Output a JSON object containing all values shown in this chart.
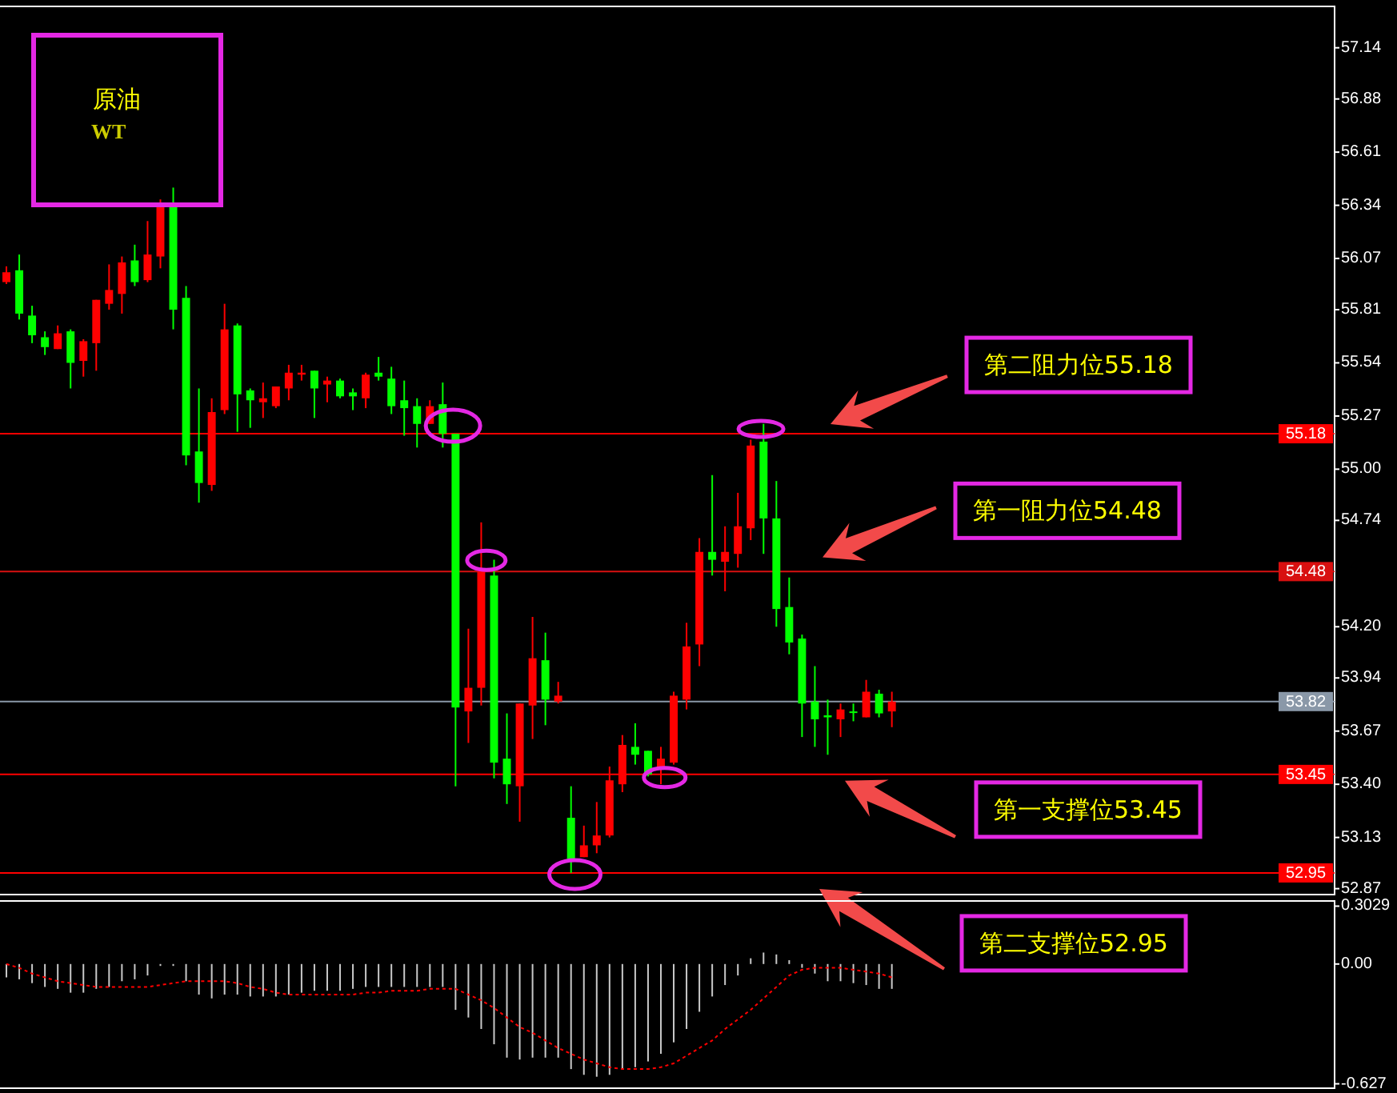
{
  "chart_data": [
    {
      "type": "candlestick",
      "title": "原油",
      "subtitle": "WT",
      "categories": [
        null,
        null,
        null,
        null,
        null,
        null,
        null,
        null,
        null,
        null,
        null,
        null,
        null,
        null,
        null,
        null,
        null,
        null,
        null,
        null,
        null,
        null,
        null,
        null,
        null,
        null,
        null,
        null,
        null,
        null,
        null,
        null,
        null,
        null,
        null,
        null,
        null,
        null,
        null,
        null,
        null,
        null,
        null,
        null,
        null,
        null,
        null,
        null,
        null,
        null,
        null,
        null,
        null,
        null,
        null,
        null,
        null,
        null,
        null,
        null,
        null,
        null,
        null,
        null,
        null,
        null,
        null,
        null,
        null,
        null,
        null,
        null,
        null,
        null,
        null,
        null,
        null,
        null,
        null,
        null,
        null,
        null,
        null,
        null,
        null,
        null,
        null,
        null,
        null,
        null,
        null,
        null,
        null,
        null,
        null,
        null,
        null,
        null,
        null,
        null,
        null,
        null,
        null,
        null
      ],
      "ohlc": [
        [
          55.95,
          56.03,
          55.94,
          56.0
        ],
        [
          56.01,
          56.09,
          55.76,
          55.79
        ],
        [
          55.78,
          55.83,
          55.64,
          55.68
        ],
        [
          55.67,
          55.7,
          55.58,
          55.62
        ],
        [
          55.61,
          55.73,
          55.61,
          55.69
        ],
        [
          55.7,
          55.71,
          55.41,
          55.54
        ],
        [
          55.55,
          55.66,
          55.47,
          55.65
        ],
        [
          55.64,
          55.86,
          55.5,
          55.86
        ],
        [
          55.84,
          56.04,
          55.81,
          55.91
        ],
        [
          55.89,
          56.08,
          55.79,
          56.05
        ],
        [
          56.06,
          56.14,
          55.93,
          55.95
        ],
        [
          55.96,
          56.26,
          55.95,
          56.09
        ],
        [
          56.08,
          56.37,
          56.02,
          56.33
        ],
        [
          56.34,
          56.43,
          55.71,
          55.81
        ],
        [
          55.87,
          55.93,
          55.02,
          55.07
        ],
        [
          55.09,
          55.41,
          54.83,
          54.93
        ],
        [
          54.92,
          55.36,
          54.89,
          55.29
        ],
        [
          55.3,
          55.84,
          55.28,
          55.71
        ],
        [
          55.73,
          55.74,
          55.19,
          55.38
        ],
        [
          55.4,
          55.41,
          55.21,
          55.35
        ],
        [
          55.34,
          55.44,
          55.26,
          55.36
        ],
        [
          55.32,
          55.42,
          55.31,
          55.42
        ],
        [
          55.41,
          55.53,
          55.35,
          55.49
        ],
        [
          55.48,
          55.53,
          55.45,
          55.49
        ],
        [
          55.5,
          55.5,
          55.26,
          55.41
        ],
        [
          55.43,
          55.47,
          55.34,
          55.45
        ],
        [
          55.45,
          55.46,
          55.36,
          55.37
        ],
        [
          55.39,
          55.41,
          55.3,
          55.37
        ],
        [
          55.36,
          55.49,
          55.31,
          55.48
        ],
        [
          55.49,
          55.57,
          55.45,
          55.47
        ],
        [
          55.46,
          55.52,
          55.28,
          55.32
        ],
        [
          55.35,
          55.45,
          55.17,
          55.31
        ],
        [
          55.32,
          55.36,
          55.11,
          55.23
        ],
        [
          55.23,
          55.35,
          55.23,
          55.32
        ],
        [
          55.33,
          55.44,
          55.11,
          55.18
        ],
        [
          55.18,
          55.18,
          53.39,
          53.79
        ],
        [
          53.77,
          54.19,
          53.61,
          53.89
        ],
        [
          53.89,
          54.73,
          53.8,
          54.48
        ],
        [
          54.46,
          54.54,
          53.43,
          53.51
        ],
        [
          53.53,
          53.76,
          53.3,
          53.4
        ],
        [
          53.39,
          53.81,
          53.21,
          53.81
        ],
        [
          53.8,
          54.25,
          53.63,
          54.04
        ],
        [
          54.03,
          54.17,
          53.7,
          53.83
        ],
        [
          53.82,
          53.92,
          53.81,
          53.85
        ],
        [
          53.23,
          53.39,
          52.95,
          53.02
        ],
        [
          53.03,
          53.19,
          53.03,
          53.09
        ],
        [
          53.09,
          53.31,
          53.05,
          53.14
        ],
        [
          53.14,
          53.49,
          53.13,
          53.42
        ],
        [
          53.4,
          53.65,
          53.36,
          53.6
        ],
        [
          53.59,
          53.71,
          53.5,
          53.55
        ],
        [
          53.57,
          53.57,
          53.44,
          53.45
        ],
        [
          53.48,
          53.59,
          53.4,
          53.53
        ],
        [
          53.51,
          53.87,
          53.5,
          53.85
        ],
        [
          53.83,
          54.22,
          53.78,
          54.1
        ],
        [
          54.11,
          54.65,
          54.0,
          54.58
        ],
        [
          54.58,
          54.97,
          54.46,
          54.54
        ],
        [
          54.53,
          54.71,
          54.38,
          54.58
        ],
        [
          54.57,
          54.88,
          54.5,
          54.71
        ],
        [
          54.7,
          55.15,
          54.64,
          55.12
        ],
        [
          55.14,
          55.23,
          54.57,
          54.75
        ],
        [
          54.75,
          54.94,
          54.2,
          54.29
        ],
        [
          54.3,
          54.45,
          54.06,
          54.12
        ],
        [
          54.14,
          54.16,
          53.64,
          53.81
        ],
        [
          53.82,
          54.0,
          53.59,
          53.73
        ],
        [
          53.75,
          53.83,
          53.55,
          53.74
        ],
        [
          53.73,
          53.81,
          53.64,
          53.78
        ],
        [
          53.77,
          53.81,
          53.72,
          53.77
        ],
        [
          53.74,
          53.93,
          53.74,
          53.87
        ],
        [
          53.86,
          53.88,
          53.74,
          53.76
        ],
        [
          53.77,
          53.87,
          53.69,
          53.82
        ],
        null,
        null,
        null,
        null,
        null,
        null,
        null,
        null,
        null,
        null,
        null,
        null,
        null,
        null,
        null,
        null,
        null,
        null,
        null,
        null,
        null,
        null,
        null,
        null,
        null,
        null,
        null,
        null,
        null,
        null,
        null,
        null,
        null,
        null
      ],
      "colors": [
        "#ff0000",
        "#00ff00",
        "#00ff00",
        "#00ff00",
        "#ff0000",
        "#00ff00",
        "#ff0000",
        "#ff0000",
        "#ff0000",
        "#ff0000",
        "#00ff00",
        "#ff0000",
        "#ff0000",
        "#00ff00",
        "#00ff00",
        "#00ff00",
        "#ff0000",
        "#ff0000",
        "#00ff00",
        "#00ff00",
        "#ff0000",
        "#ff0000",
        "#ff0000",
        "#ff0000",
        "#00ff00",
        "#ff0000",
        "#00ff00",
        "#00ff00",
        "#ff0000",
        "#00ff00",
        "#00ff00",
        "#00ff00",
        "#00ff00",
        "#ff0000",
        "#00ff00",
        "#00ff00",
        "#ff0000",
        "#ff0000",
        "#00ff00",
        "#00ff00",
        "#ff0000",
        "#ff0000",
        "#00ff00",
        "#ff0000",
        "#00ff00",
        "#ff0000",
        "#ff0000",
        "#ff0000",
        "#ff0000",
        "#00ff00",
        "#00ff00",
        "#ff0000",
        "#ff0000",
        "#ff0000",
        "#ff0000",
        "#00ff00",
        "#ff0000",
        "#ff0000",
        "#ff0000",
        "#00ff00",
        "#00ff00",
        "#00ff00",
        "#00ff00",
        "#00ff00",
        "#00ff00",
        "#ff0000",
        "#00ff00",
        "#ff0000",
        "#00ff00",
        "#ff0000",
        null,
        null,
        null,
        null,
        null,
        null,
        null,
        null,
        null,
        null,
        null,
        null,
        null,
        null,
        null,
        null,
        null,
        null,
        null,
        null,
        null,
        null,
        null,
        null,
        null,
        null,
        null,
        null,
        null,
        null,
        null,
        null,
        null,
        null
      ],
      "ylim": [
        52.84,
        57.35
      ],
      "yticks": [
        57.14,
        56.88,
        56.61,
        56.34,
        56.07,
        55.81,
        55.54,
        55.27,
        {
          "value": 55,
          "label": "55.00"
        },
        54.74,
        {
          "value": 54.2,
          "label": "54.20"
        },
        53.94,
        53.67,
        {
          "value": 53.4,
          "label": "53.40"
        },
        53.13,
        52.87
      ],
      "tick_labels": "y",
      "ref_lines": [
        {
          "axis": "y",
          "value": 55.18,
          "label": "55.18",
          "color": "#ff0000"
        },
        {
          "axis": "y",
          "value": 54.48,
          "label": "54.48",
          "color": "#d81010"
        },
        {
          "axis": "y",
          "value": 53.82,
          "label": "53.82",
          "color": "#8a98a8"
        },
        {
          "axis": "y",
          "value": 53.45,
          "label": "53.45",
          "color": "#ff0000"
        },
        {
          "axis": "y",
          "value": 52.95,
          "label": "52.95",
          "color": "#ff0000"
        }
      ],
      "annotations": [
        {
          "text": "第二阻力位55.18",
          "y": 55.18
        },
        {
          "text": "第一阻力位54.48",
          "y": 54.48
        },
        {
          "text": "第一支撑位53.45",
          "y": 53.45
        },
        {
          "text": "第二支撑位52.95",
          "y": 52.95
        }
      ]
    },
    {
      "type": "bar",
      "categories": [
        null,
        null,
        null,
        null,
        null,
        null,
        null,
        null,
        null,
        null,
        null,
        null,
        null,
        null,
        null,
        null,
        null,
        null,
        null,
        null,
        null,
        null,
        null,
        null,
        null,
        null,
        null,
        null,
        null,
        null,
        null,
        null,
        null,
        null,
        null,
        null,
        null,
        null,
        null,
        null,
        null,
        null,
        null,
        null,
        null,
        null,
        null,
        null,
        null,
        null,
        null,
        null,
        null,
        null,
        null,
        null,
        null,
        null,
        null,
        null,
        null,
        null,
        null,
        null,
        null,
        null,
        null,
        null,
        null,
        null,
        null,
        null,
        null,
        null,
        null,
        null,
        null,
        null,
        null,
        null,
        null,
        null,
        null,
        null,
        null,
        null,
        null,
        null,
        null,
        null,
        null,
        null,
        null,
        null,
        null,
        null,
        null,
        null,
        null,
        null,
        null,
        null,
        null,
        null
      ],
      "series": [
        {
          "type": "bar",
          "color": "#c8c8c8",
          "values": [
            -0.07,
            -0.08,
            -0.1,
            -0.12,
            -0.13,
            -0.15,
            -0.15,
            -0.13,
            -0.12,
            -0.09,
            -0.08,
            -0.06,
            -0.01,
            -0.01,
            -0.09,
            -0.16,
            -0.18,
            -0.16,
            -0.16,
            -0.17,
            -0.17,
            -0.17,
            -0.16,
            -0.15,
            -0.14,
            -0.14,
            -0.14,
            -0.13,
            -0.12,
            -0.12,
            -0.12,
            -0.12,
            -0.12,
            -0.12,
            -0.12,
            -0.24,
            -0.28,
            -0.34,
            -0.42,
            -0.49,
            -0.5,
            -0.49,
            -0.49,
            -0.49,
            -0.55,
            -0.58,
            -0.59,
            -0.58,
            -0.55,
            -0.54,
            -0.51,
            -0.47,
            -0.41,
            -0.34,
            -0.25,
            -0.17,
            -0.11,
            -0.06,
            0.03,
            0.06,
            0.05,
            0.02,
            -0.02,
            -0.05,
            -0.09,
            -0.09,
            -0.1,
            -0.11,
            -0.13,
            -0.13,
            null,
            null,
            null,
            null,
            null,
            null,
            null,
            null,
            null,
            null,
            null,
            null,
            null,
            null,
            null,
            null,
            null,
            null,
            null,
            null,
            null,
            null,
            null,
            null,
            null,
            null,
            null,
            null,
            null,
            null,
            null,
            null,
            null,
            null
          ]
        },
        {
          "type": "line",
          "color": "#ff0000",
          "line_style": "dotted",
          "values": [
            0.0,
            -0.02,
            -0.05,
            -0.07,
            -0.09,
            -0.1,
            -0.11,
            -0.12,
            -0.12,
            -0.12,
            -0.12,
            -0.12,
            -0.11,
            -0.1,
            -0.09,
            -0.09,
            -0.09,
            -0.09,
            -0.1,
            -0.12,
            -0.13,
            -0.15,
            -0.16,
            -0.16,
            -0.16,
            -0.16,
            -0.16,
            -0.16,
            -0.15,
            -0.15,
            -0.14,
            -0.14,
            -0.14,
            -0.13,
            -0.13,
            -0.13,
            -0.16,
            -0.19,
            -0.23,
            -0.28,
            -0.33,
            -0.36,
            -0.4,
            -0.44,
            -0.47,
            -0.5,
            -0.52,
            -0.54,
            -0.55,
            -0.55,
            -0.55,
            -0.54,
            -0.52,
            -0.48,
            -0.44,
            -0.4,
            -0.34,
            -0.29,
            -0.24,
            -0.18,
            -0.12,
            -0.06,
            -0.03,
            -0.02,
            -0.02,
            -0.02,
            -0.03,
            -0.04,
            -0.05,
            -0.07,
            null,
            null,
            null,
            null,
            null,
            null,
            null,
            null,
            null,
            null,
            null,
            null,
            null,
            null,
            null,
            null,
            null,
            null,
            null,
            null,
            null,
            null,
            null,
            null,
            null,
            null,
            null,
            null,
            null,
            null,
            null,
            null,
            null,
            null
          ]
        }
      ],
      "ylim": [
        -0.65,
        0.33
      ],
      "yticks": [
        0.3029,
        {
          "value": 0,
          "label": "0.00"
        },
        -0.627
      ],
      "tick_labels": "y"
    }
  ]
}
